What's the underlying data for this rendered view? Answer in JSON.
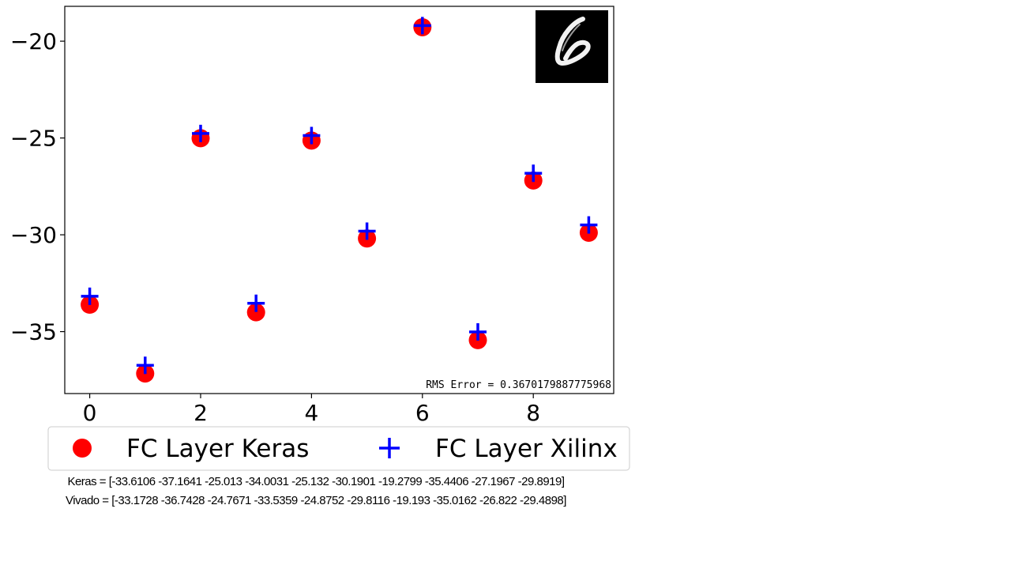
{
  "chart_data": {
    "type": "scatter",
    "x": [
      0,
      1,
      2,
      3,
      4,
      5,
      6,
      7,
      8,
      9
    ],
    "series": [
      {
        "name": "FC Layer Keras",
        "marker": "circle",
        "color": "#ff0000",
        "values": [
          -33.6106,
          -37.1641,
          -25.013,
          -34.0031,
          -25.132,
          -30.1901,
          -19.2799,
          -35.4406,
          -27.1967,
          -29.8919
        ]
      },
      {
        "name": "FC Layer Xilinx",
        "marker": "plus",
        "color": "#0000ff",
        "values": [
          -33.1728,
          -36.7428,
          -24.7671,
          -33.5359,
          -24.8752,
          -29.8116,
          -19.193,
          -35.0162,
          -26.822,
          -29.4898
        ]
      }
    ],
    "xticks": [
      "0",
      "2",
      "4",
      "6",
      "8"
    ],
    "yticks": [
      "−20",
      "−25",
      "−30",
      "−35"
    ],
    "xlim": [
      -0.45,
      9.45
    ],
    "ylim": [
      -38.2,
      -18.2
    ],
    "grid": false,
    "legend_position": "bottom",
    "annotation": "RMS Error = 0.3670179887775968",
    "inset_image": "handwritten-digit-6"
  },
  "footer": {
    "keras_line": "Keras = [-33.6106 -37.1641 -25.013  -34.0031 -25.132  -30.1901 -19.2799 -35.4406 -27.1967 -29.8919]",
    "vivado_line": "Vivado = [-33.1728 -36.7428 -24.7671 -33.5359 -24.8752 -29.8116 -19.193  -35.0162 -26.822  -29.4898]"
  }
}
